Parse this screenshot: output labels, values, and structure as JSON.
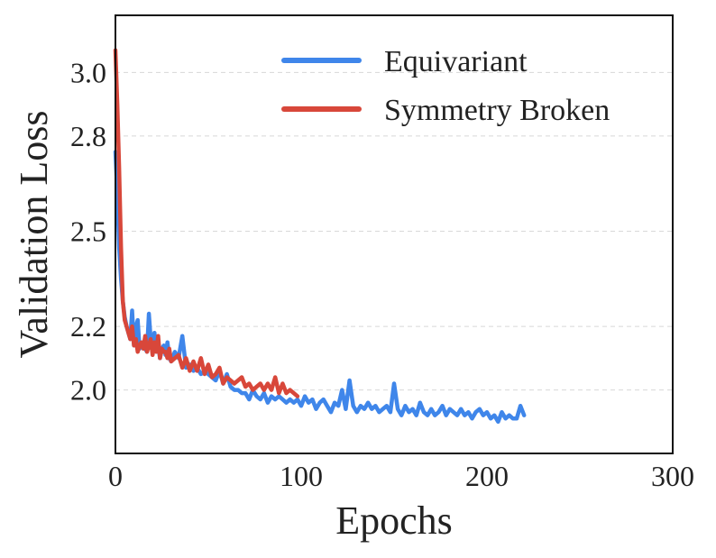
{
  "chart_data": {
    "type": "line",
    "title": "",
    "xlabel": "Epochs",
    "ylabel": "Validation Loss",
    "xlim": [
      0,
      300
    ],
    "ylim": [
      1.8,
      3.18
    ],
    "xticks": [
      0,
      100,
      200,
      300
    ],
    "yticks": [
      2.0,
      2.2,
      2.5,
      2.8,
      3.0
    ],
    "ytick_labels": [
      "2.0",
      "2.2",
      "2.5",
      "2.8",
      "3.0"
    ],
    "grid": "horizontal-dashed",
    "legend": "top-right",
    "series": [
      {
        "name": "Equivariant",
        "color": "#3f86ea",
        "x": [
          0,
          1,
          2,
          3,
          4,
          5,
          6,
          7,
          8,
          9,
          10,
          11,
          12,
          13,
          14,
          15,
          16,
          17,
          18,
          19,
          20,
          21,
          22,
          23,
          24,
          25,
          26,
          27,
          28,
          29,
          30,
          32,
          34,
          36,
          38,
          40,
          42,
          44,
          46,
          48,
          50,
          52,
          54,
          56,
          58,
          60,
          62,
          64,
          66,
          68,
          70,
          72,
          74,
          76,
          78,
          80,
          82,
          84,
          86,
          88,
          90,
          92,
          94,
          96,
          98,
          100,
          102,
          104,
          106,
          108,
          110,
          112,
          114,
          116,
          118,
          120,
          122,
          124,
          126,
          128,
          130,
          132,
          134,
          136,
          138,
          140,
          142,
          144,
          146,
          148,
          150,
          152,
          154,
          156,
          158,
          160,
          162,
          164,
          166,
          168,
          170,
          172,
          174,
          176,
          178,
          180,
          182,
          184,
          186,
          188,
          190,
          192,
          194,
          196,
          198,
          200,
          202,
          204,
          206,
          208,
          210,
          212,
          214,
          216,
          218,
          220
        ],
        "values": [
          2.75,
          2.62,
          2.45,
          2.35,
          2.28,
          2.23,
          2.2,
          2.18,
          2.16,
          2.25,
          2.14,
          2.2,
          2.22,
          2.13,
          2.15,
          2.14,
          2.13,
          2.12,
          2.24,
          2.16,
          2.13,
          2.18,
          2.12,
          2.14,
          2.1,
          2.13,
          2.14,
          2.11,
          2.15,
          2.1,
          2.09,
          2.12,
          2.1,
          2.17,
          2.07,
          2.08,
          2.06,
          2.07,
          2.05,
          2.06,
          2.05,
          2.04,
          2.03,
          2.06,
          2.02,
          2.05,
          2.01,
          2.0,
          2.0,
          1.99,
          1.99,
          1.97,
          2.0,
          1.98,
          1.97,
          1.99,
          1.96,
          1.98,
          1.97,
          1.98,
          1.97,
          1.96,
          1.97,
          1.96,
          1.97,
          1.95,
          1.98,
          1.96,
          1.97,
          1.94,
          1.96,
          1.97,
          1.95,
          1.93,
          1.96,
          1.95,
          2.0,
          1.94,
          2.03,
          1.95,
          1.93,
          1.95,
          1.94,
          1.96,
          1.94,
          1.95,
          1.93,
          1.94,
          1.95,
          1.93,
          2.02,
          1.94,
          1.92,
          1.95,
          1.93,
          1.94,
          1.92,
          1.96,
          1.93,
          1.92,
          1.94,
          1.92,
          1.93,
          1.95,
          1.92,
          1.94,
          1.93,
          1.92,
          1.94,
          1.92,
          1.93,
          1.91,
          1.93,
          1.94,
          1.92,
          1.93,
          1.91,
          1.92,
          1.9,
          1.93,
          1.91,
          1.92,
          1.91,
          1.91,
          1.95,
          1.92
        ]
      },
      {
        "name": "Symmetry Broken",
        "color": "#d8473a",
        "x": [
          0,
          1,
          2,
          3,
          4,
          5,
          6,
          7,
          8,
          9,
          10,
          11,
          12,
          13,
          14,
          15,
          16,
          17,
          18,
          19,
          20,
          21,
          22,
          23,
          24,
          25,
          26,
          27,
          28,
          29,
          30,
          32,
          34,
          36,
          38,
          40,
          42,
          44,
          46,
          48,
          50,
          52,
          54,
          56,
          58,
          60,
          62,
          64,
          66,
          68,
          70,
          72,
          74,
          76,
          78,
          80,
          82,
          84,
          86,
          88,
          90,
          92,
          94,
          96,
          98
        ],
        "values": [
          3.07,
          2.9,
          2.7,
          2.45,
          2.28,
          2.22,
          2.2,
          2.18,
          2.16,
          2.2,
          2.14,
          2.16,
          2.12,
          2.14,
          2.15,
          2.13,
          2.17,
          2.12,
          2.14,
          2.16,
          2.11,
          2.15,
          2.12,
          2.17,
          2.1,
          2.13,
          2.12,
          2.12,
          2.1,
          2.13,
          2.09,
          2.1,
          2.11,
          2.07,
          2.1,
          2.06,
          2.09,
          2.06,
          2.1,
          2.05,
          2.08,
          2.04,
          2.05,
          2.07,
          2.02,
          2.04,
          2.03,
          2.02,
          2.03,
          2.04,
          2.01,
          2.02,
          2.0,
          2.01,
          2.02,
          2.0,
          2.02,
          2.0,
          2.04,
          1.99,
          2.02,
          1.99,
          2.0,
          1.99,
          1.98
        ]
      }
    ]
  }
}
